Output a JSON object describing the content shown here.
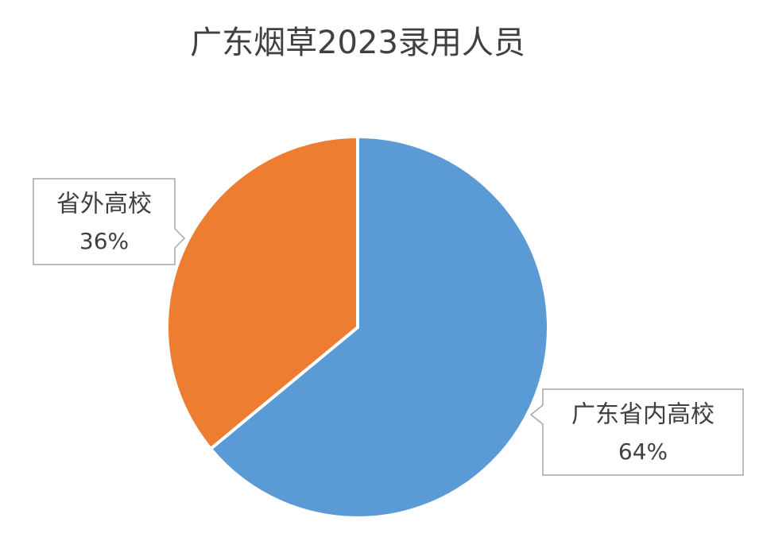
{
  "chart_data": {
    "type": "pie",
    "title": "广东烟草2023录用人员",
    "categories": [
      "广东省内高校",
      "省外高校"
    ],
    "values": [
      64,
      36
    ],
    "value_labels": [
      "64%",
      "36%"
    ],
    "colors": [
      "#5b9bd5",
      "#ed7d31"
    ]
  }
}
